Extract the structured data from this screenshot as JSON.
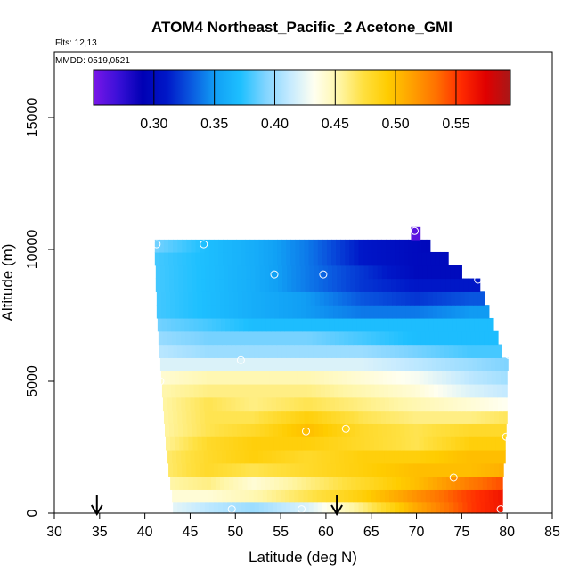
{
  "chart_data": {
    "type": "heatmap",
    "title": "ATOM4 Northeast_Pacific_2 Acetone_GMI",
    "flights_label": "Flts: 12,13",
    "dates_label": "MMDD: 0519,0521",
    "xlabel": "Latitude (deg N)",
    "ylabel": "Altitude (m)",
    "xlim": [
      30,
      85
    ],
    "ylim": [
      0,
      17500
    ],
    "x_ticks": [
      "30",
      "35",
      "40",
      "45",
      "50",
      "55",
      "60",
      "65",
      "70",
      "75",
      "80",
      "85"
    ],
    "y_ticks": [
      "0",
      "5000",
      "10000",
      "15000"
    ],
    "colorbar": {
      "range": [
        0.25,
        0.595
      ],
      "ticks": [
        "0.30",
        "0.35",
        "0.40",
        "0.45",
        "0.50",
        "0.55"
      ],
      "tick_values": [
        0.3,
        0.35,
        0.4,
        0.45,
        0.5,
        0.55
      ],
      "colors": [
        "#7a16e8",
        "#3a10d8",
        "#0000b4",
        "#0018c8",
        "#0a5ae0",
        "#11a0f5",
        "#1ec0ff",
        "#80d4ff",
        "#c4eaff",
        "#fffff0",
        "#fff6a8",
        "#ffe040",
        "#ffcc00",
        "#ffa000",
        "#ff7000",
        "#ff2a00",
        "#e00000",
        "#a81818"
      ]
    },
    "altitude_levels_m": [
      180,
      650,
      1150,
      1650,
      2150,
      2650,
      3150,
      3650,
      4150,
      4650,
      5150,
      5650,
      6150,
      6650,
      7150,
      7650,
      8150,
      8650,
      9150,
      9650,
      10150,
      10600
    ],
    "level_lat_ranges": [
      [
        43.1,
        79.5
      ],
      [
        43.0,
        79.5
      ],
      [
        42.8,
        79.5
      ],
      [
        42.6,
        79.6
      ],
      [
        42.5,
        79.8
      ],
      [
        42.3,
        79.8
      ],
      [
        42.2,
        79.9
      ],
      [
        42.1,
        80.0
      ],
      [
        42.0,
        80.0
      ],
      [
        41.9,
        80.0
      ],
      [
        41.8,
        80.0
      ],
      [
        41.7,
        80.1
      ],
      [
        41.6,
        79.4
      ],
      [
        41.5,
        79.0
      ],
      [
        41.4,
        78.5
      ],
      [
        41.3,
        78.0
      ],
      [
        41.3,
        77.5
      ],
      [
        41.2,
        77.0
      ],
      [
        41.2,
        75.0
      ],
      [
        41.1,
        73.5
      ],
      [
        41.1,
        71.5
      ],
      [
        69.4,
        70.4
      ]
    ],
    "anchor_lats": [
      41,
      47,
      52,
      58,
      64,
      70,
      76,
      81
    ],
    "level_values": [
      [
        0.43,
        0.41,
        0.4,
        0.42,
        0.46,
        0.51,
        0.55,
        0.57
      ],
      [
        0.44,
        0.44,
        0.45,
        0.47,
        0.49,
        0.52,
        0.55,
        0.57
      ],
      [
        0.45,
        0.46,
        0.44,
        0.46,
        0.48,
        0.5,
        0.53,
        0.55
      ],
      [
        0.46,
        0.48,
        0.47,
        0.48,
        0.49,
        0.5,
        0.5,
        0.51
      ],
      [
        0.46,
        0.48,
        0.49,
        0.48,
        0.49,
        0.49,
        0.5,
        0.5
      ],
      [
        0.45,
        0.48,
        0.49,
        0.49,
        0.48,
        0.47,
        0.49,
        0.49
      ],
      [
        0.45,
        0.47,
        0.48,
        0.5,
        0.48,
        0.47,
        0.48,
        0.48
      ],
      [
        0.45,
        0.47,
        0.47,
        0.49,
        0.47,
        0.46,
        0.46,
        0.47
      ],
      [
        0.45,
        0.47,
        0.46,
        0.47,
        0.46,
        0.45,
        0.44,
        0.43
      ],
      [
        0.45,
        0.46,
        0.46,
        0.46,
        0.45,
        0.44,
        0.42,
        0.41
      ],
      [
        0.44,
        0.45,
        0.45,
        0.45,
        0.44,
        0.43,
        0.41,
        0.4
      ],
      [
        0.42,
        0.42,
        0.42,
        0.42,
        0.42,
        0.41,
        0.4,
        0.39
      ],
      [
        0.41,
        0.4,
        0.4,
        0.4,
        0.4,
        0.39,
        0.38,
        0.38
      ],
      [
        0.4,
        0.39,
        0.39,
        0.39,
        0.38,
        0.37,
        0.37,
        0.37
      ],
      [
        0.39,
        0.38,
        0.37,
        0.37,
        0.37,
        0.37,
        0.37,
        0.37
      ],
      [
        0.38,
        0.37,
        0.36,
        0.35,
        0.34,
        0.34,
        0.35,
        0.35
      ],
      [
        0.38,
        0.37,
        0.36,
        0.35,
        0.33,
        0.32,
        0.33,
        0.33
      ],
      [
        0.38,
        0.37,
        0.36,
        0.34,
        0.32,
        0.31,
        0.31,
        0.31
      ],
      [
        0.38,
        0.37,
        0.36,
        0.34,
        0.32,
        0.3,
        0.3,
        0.3
      ],
      [
        0.38,
        0.37,
        0.36,
        0.34,
        0.31,
        0.3,
        0.3,
        0.3
      ],
      [
        0.39,
        0.37,
        0.36,
        0.34,
        0.31,
        0.3,
        0.29,
        0.28
      ],
      [
        0.26,
        0.26,
        0.26,
        0.26,
        0.26,
        0.26,
        0.26,
        0.26
      ]
    ],
    "observations": [
      {
        "lat": 41.3,
        "alt": 10200
      },
      {
        "lat": 46.5,
        "alt": 10200
      },
      {
        "lat": 54.3,
        "alt": 9050
      },
      {
        "lat": 59.7,
        "alt": 9050
      },
      {
        "lat": 69.8,
        "alt": 10700
      },
      {
        "lat": 76.8,
        "alt": 8850
      },
      {
        "lat": 80.2,
        "alt": 6000
      },
      {
        "lat": 41.7,
        "alt": 5000
      },
      {
        "lat": 50.6,
        "alt": 5800
      },
      {
        "lat": 57.8,
        "alt": 3100
      },
      {
        "lat": 62.2,
        "alt": 3200
      },
      {
        "lat": 79.9,
        "alt": 2900
      },
      {
        "lat": 74.1,
        "alt": 1350
      },
      {
        "lat": 49.6,
        "alt": 150
      },
      {
        "lat": 57.3,
        "alt": 150
      },
      {
        "lat": 79.3,
        "alt": 150
      }
    ],
    "arrow_markers_lat": [
      34.7,
      61.2
    ]
  }
}
